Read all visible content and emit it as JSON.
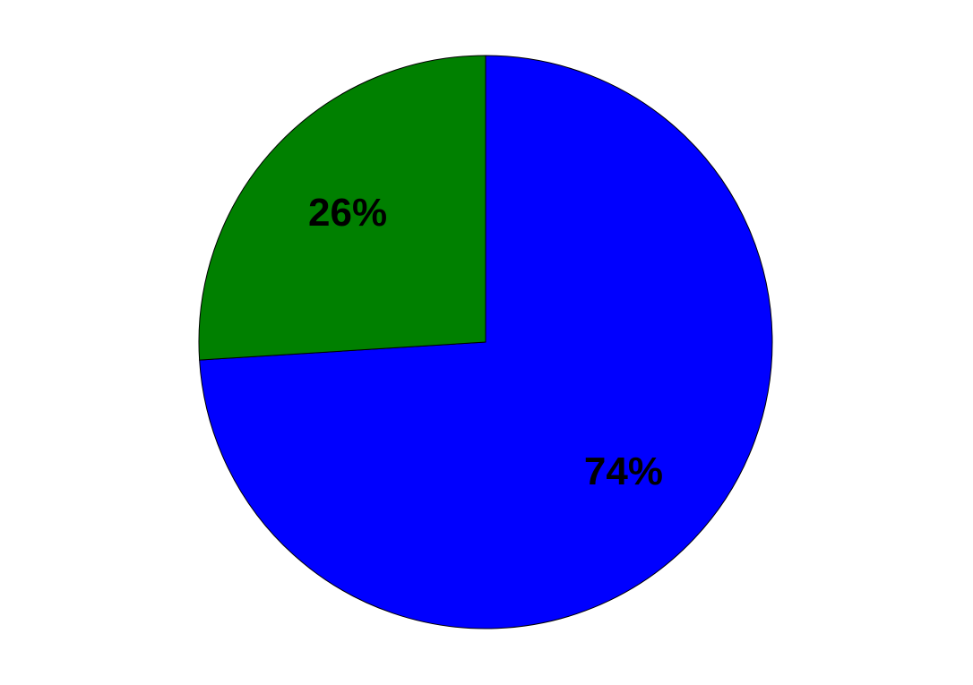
{
  "chart_data": {
    "type": "pie",
    "title": "",
    "start_angle": "top",
    "direction": "clockwise",
    "slices": [
      {
        "value": 74,
        "label": "74%",
        "color": "#0000ff"
      },
      {
        "value": 26,
        "label": "26%",
        "color": "#008000"
      }
    ],
    "edge_color": "#000000",
    "legend": "none"
  }
}
